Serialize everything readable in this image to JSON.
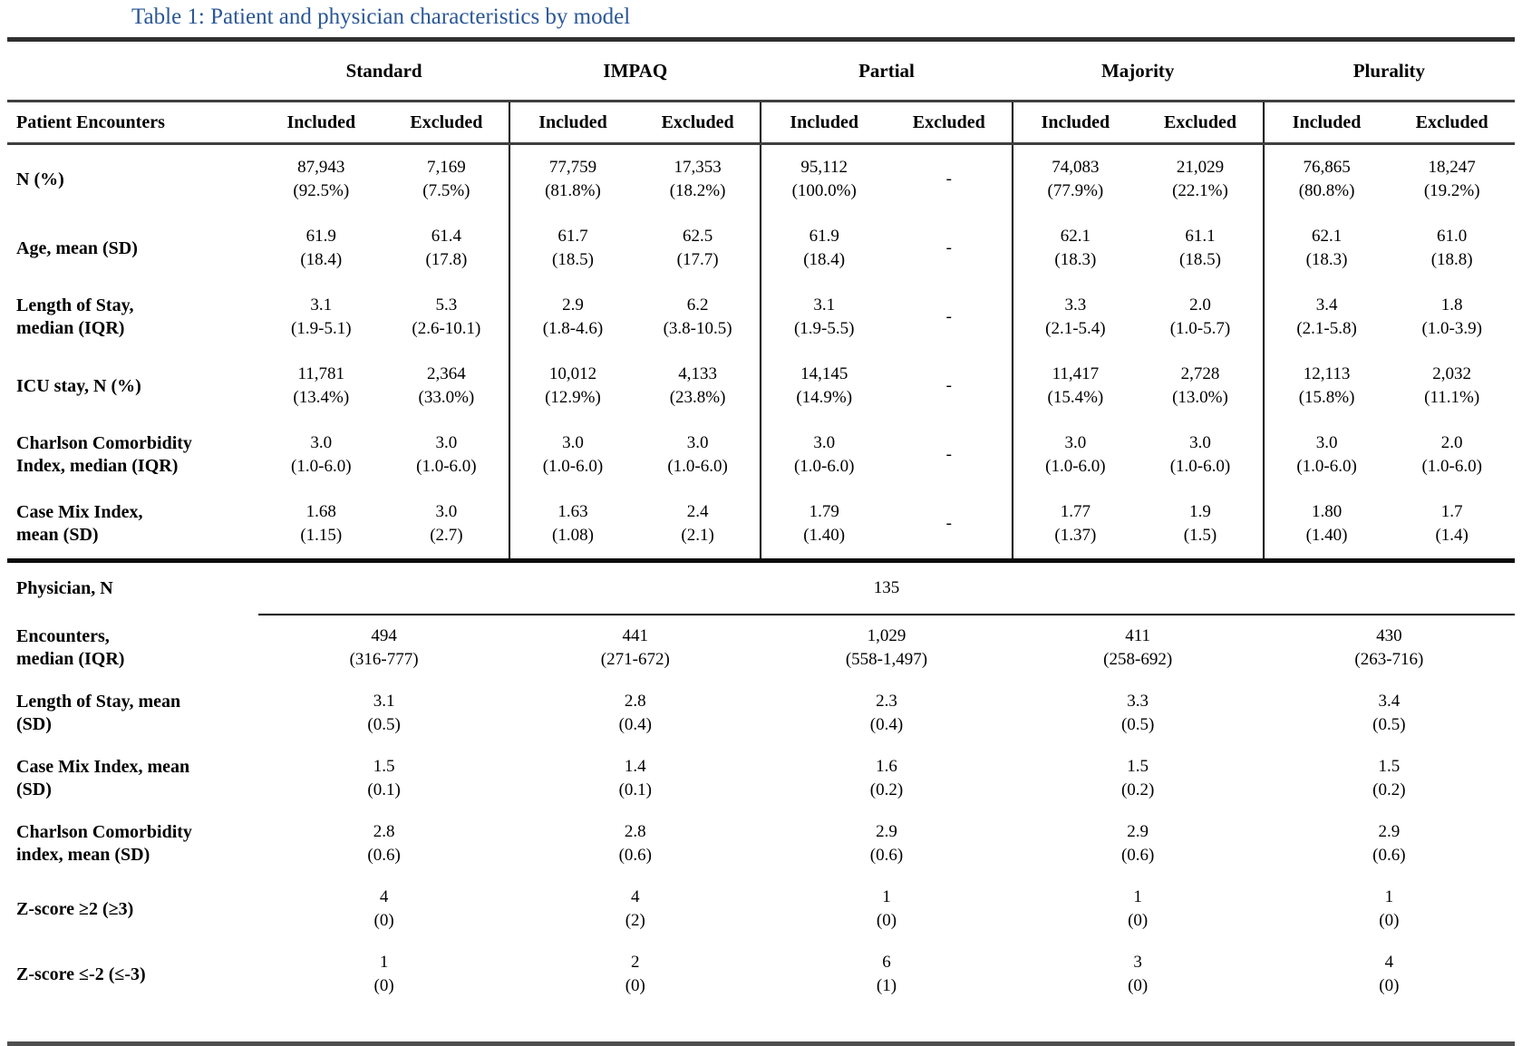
{
  "title": "Table 1: Patient and physician characteristics by model",
  "models": [
    "Standard",
    "IMPAQ",
    "Partial",
    "Majority",
    "Plurality"
  ],
  "patient": {
    "header_label": "Patient Encounters",
    "included_label": "Included",
    "excluded_label": "Excluded",
    "rows": [
      {
        "label": "N (%)",
        "cells": [
          "87,943\n(92.5%)",
          "7,169\n(7.5%)",
          "77,759\n(81.8%)",
          "17,353\n(18.2%)",
          "95,112\n(100.0%)",
          "-",
          "74,083\n(77.9%)",
          "21,029\n(22.1%)",
          "76,865\n(80.8%)",
          "18,247\n(19.2%)"
        ]
      },
      {
        "label": "Age, mean (SD)",
        "cells": [
          "61.9\n(18.4)",
          "61.4\n(17.8)",
          "61.7\n(18.5)",
          "62.5\n(17.7)",
          "61.9\n(18.4)",
          "-",
          "62.1\n(18.3)",
          "61.1\n(18.5)",
          "62.1\n(18.3)",
          "61.0\n(18.8)"
        ]
      },
      {
        "label": "Length of Stay,\nmedian (IQR)",
        "cells": [
          "3.1\n(1.9-5.1)",
          "5.3\n(2.6-10.1)",
          "2.9\n(1.8-4.6)",
          "6.2\n(3.8-10.5)",
          "3.1\n(1.9-5.5)",
          "-",
          "3.3\n(2.1-5.4)",
          "2.0\n(1.0-5.7)",
          "3.4\n(2.1-5.8)",
          "1.8\n(1.0-3.9)"
        ]
      },
      {
        "label": "ICU stay, N (%)",
        "cells": [
          "11,781\n(13.4%)",
          "2,364\n(33.0%)",
          "10,012\n(12.9%)",
          "4,133\n(23.8%)",
          "14,145\n(14.9%)",
          "-",
          "11,417\n(15.4%)",
          "2,728\n(13.0%)",
          "12,113\n(15.8%)",
          "2,032\n(11.1%)"
        ]
      },
      {
        "label": "Charlson Comorbidity\nIndex, median (IQR)",
        "cells": [
          "3.0\n(1.0-6.0)",
          "3.0\n(1.0-6.0)",
          "3.0\n(1.0-6.0)",
          "3.0\n(1.0-6.0)",
          "3.0\n(1.0-6.0)",
          "-",
          "3.0\n(1.0-6.0)",
          "3.0\n(1.0-6.0)",
          "3.0\n(1.0-6.0)",
          "2.0\n(1.0-6.0)"
        ]
      },
      {
        "label": "Case Mix Index,\nmean (SD)",
        "cells": [
          "1.68\n(1.15)",
          "3.0\n(2.7)",
          "1.63\n(1.08)",
          "2.4\n(2.1)",
          "1.79\n(1.40)",
          "-",
          "1.77\n(1.37)",
          "1.9\n(1.5)",
          "1.80\n(1.40)",
          "1.7\n(1.4)"
        ]
      }
    ]
  },
  "physician": {
    "label": "Physician, N",
    "n_value": "135",
    "rows": [
      {
        "label": "Encounters,\nmedian (IQR)",
        "values": [
          "494\n(316-777)",
          "441\n(271-672)",
          "1,029\n(558-1,497)",
          "411\n(258-692)",
          "430\n(263-716)"
        ]
      },
      {
        "label": "Length of Stay, mean\n(SD)",
        "values": [
          "3.1\n(0.5)",
          "2.8\n(0.4)",
          "2.3\n(0.4)",
          "3.3\n(0.5)",
          "3.4\n(0.5)"
        ]
      },
      {
        "label": "Case Mix Index, mean\n(SD)",
        "values": [
          "1.5\n(0.1)",
          "1.4\n(0.1)",
          "1.6\n(0.2)",
          "1.5\n(0.2)",
          "1.5\n(0.2)"
        ]
      },
      {
        "label": "Charlson Comorbidity\nindex, mean (SD)",
        "values": [
          "2.8\n(0.6)",
          "2.8\n(0.6)",
          "2.9\n(0.6)",
          "2.9\n(0.6)",
          "2.9\n(0.6)"
        ]
      },
      {
        "label": "Z-score ≥2 (≥3)",
        "values": [
          "4\n(0)",
          "4\n(2)",
          "1\n(0)",
          "1\n(0)",
          "1\n(0)"
        ]
      },
      {
        "label": "Z-score ≤-2 (≤-3)",
        "values": [
          "1\n(0)",
          "2\n(0)",
          "6\n(1)",
          "3\n(0)",
          "4\n(0)"
        ]
      }
    ]
  }
}
